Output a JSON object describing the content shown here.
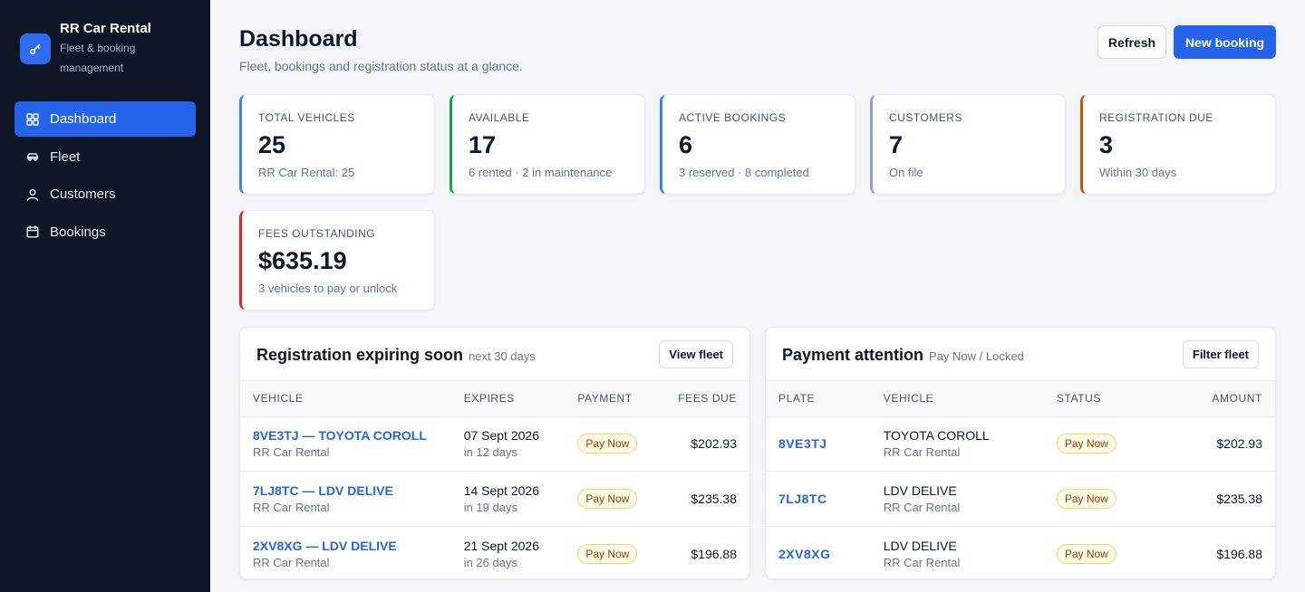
{
  "brand": {
    "name": "RR Car Rental",
    "subtitle": "Fleet & booking management",
    "icon": "key-icon",
    "color": "#2f6bf0"
  },
  "sidebar": {
    "items": [
      {
        "label": "Dashboard",
        "icon": "grid-icon",
        "active": true
      },
      {
        "label": "Fleet",
        "icon": "car-icon",
        "active": false
      },
      {
        "label": "Customers",
        "icon": "user-icon",
        "active": false
      },
      {
        "label": "Bookings",
        "icon": "calendar-icon",
        "active": false
      }
    ]
  },
  "header": {
    "title": "Dashboard",
    "subtitle": "Fleet, bookings and registration status at a glance.",
    "refresh_label": "Refresh",
    "new_booking_label": "New booking"
  },
  "stats": [
    {
      "label": "Total vehicles",
      "value": "25",
      "note": "RR Car Rental: 25",
      "accent": "#3b82f6"
    },
    {
      "label": "Available",
      "value": "17",
      "note": "6 rented · 2 in maintenance",
      "accent": "#16a34a"
    },
    {
      "label": "Active bookings",
      "value": "6",
      "note": "3 reserved · 8 completed",
      "accent": "#3b82f6"
    },
    {
      "label": "Customers",
      "value": "7",
      "note": "On file",
      "accent": "#94a3b8"
    },
    {
      "label": "Registration due",
      "value": "3",
      "note": "Within 30 days",
      "accent": "#c2570c"
    },
    {
      "label": "Fees outstanding",
      "value": "$635.19",
      "note": "3 vehicles to pay or unlock",
      "accent": "#dc2626"
    }
  ],
  "registration_panel": {
    "title": "Registration expiring soon",
    "hint": "next 30 days",
    "button": "View fleet",
    "columns": [
      "Vehicle",
      "Expires",
      "Payment",
      "Fees due"
    ],
    "rows": [
      {
        "vehicle": "8VE3TJ — TOYOTA COROLL",
        "owner": "RR Car Rental",
        "date": "07 Sept 2026",
        "relative": "in 12 days",
        "payment": "Pay Now",
        "fees": "$202.93"
      },
      {
        "vehicle": "7LJ8TC — LDV DELIVE",
        "owner": "RR Car Rental",
        "date": "14 Sept 2026",
        "relative": "in 19 days",
        "payment": "Pay Now",
        "fees": "$235.38"
      },
      {
        "vehicle": "2XV8XG — LDV DELIVE",
        "owner": "RR Car Rental",
        "date": "21 Sept 2026",
        "relative": "in 26 days",
        "payment": "Pay Now",
        "fees": "$196.88"
      }
    ]
  },
  "payment_panel": {
    "title": "Payment attention",
    "hint": "Pay Now / Locked",
    "button": "Filter fleet",
    "columns": [
      "Plate",
      "Vehicle",
      "Status",
      "Amount"
    ],
    "rows": [
      {
        "plate": "8VE3TJ",
        "vehicle": "TOYOTA COROLL",
        "owner": "RR Car Rental",
        "status": "Pay Now",
        "amount": "$202.93"
      },
      {
        "plate": "7LJ8TC",
        "vehicle": "LDV DELIVE",
        "owner": "RR Car Rental",
        "status": "Pay Now",
        "amount": "$235.38"
      },
      {
        "plate": "2XV8XG",
        "vehicle": "LDV DELIVE",
        "owner": "RR Car Rental",
        "status": "Pay Now",
        "amount": "$196.88"
      }
    ]
  }
}
